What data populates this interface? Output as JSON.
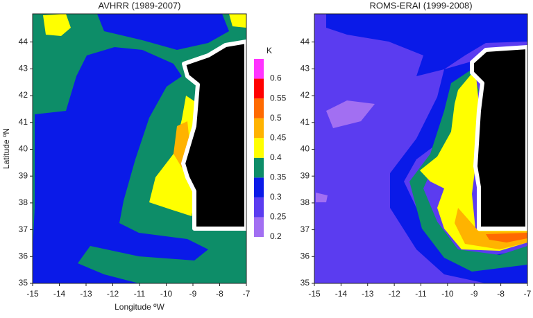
{
  "chart_data": [
    {
      "type": "contour",
      "title": "AVHRR (1989-2007)",
      "xlabel": "Longitude ºW",
      "ylabel": "Latitude ºN",
      "xlim": [
        -15,
        -7
      ],
      "ylim": [
        35,
        45.05
      ],
      "xticks": [
        -15,
        -14,
        -13,
        -12,
        -11,
        -10,
        -9,
        -8,
        -7
      ],
      "yticks": [
        35,
        36,
        37,
        38,
        39,
        40,
        41,
        42,
        43,
        44
      ],
      "colorbar": {
        "title": "K",
        "lim": [
          0.2,
          0.65
        ],
        "ticks": [
          0.2,
          0.25,
          0.3,
          0.35,
          0.4,
          0.45,
          0.5,
          0.55,
          0.6
        ],
        "colors": [
          "#a26ff2",
          "#5b3cf0",
          "#0a1ae8",
          "#0d8d68",
          "#ffff00",
          "#ffb300",
          "#ff6a00",
          "#ff0000",
          "#ff33ff"
        ]
      }
    },
    {
      "type": "contour",
      "title": "ROMS-ERAI (1999-2008)",
      "xlim": [
        -15,
        -7
      ],
      "ylim": [
        35,
        45.05
      ],
      "xticks": [
        -15,
        -14,
        -13,
        -12,
        -11,
        -10,
        -9,
        -8,
        -7
      ],
      "yticks": [
        35,
        36,
        37,
        38,
        39,
        40,
        41,
        42,
        43,
        44
      ]
    }
  ]
}
